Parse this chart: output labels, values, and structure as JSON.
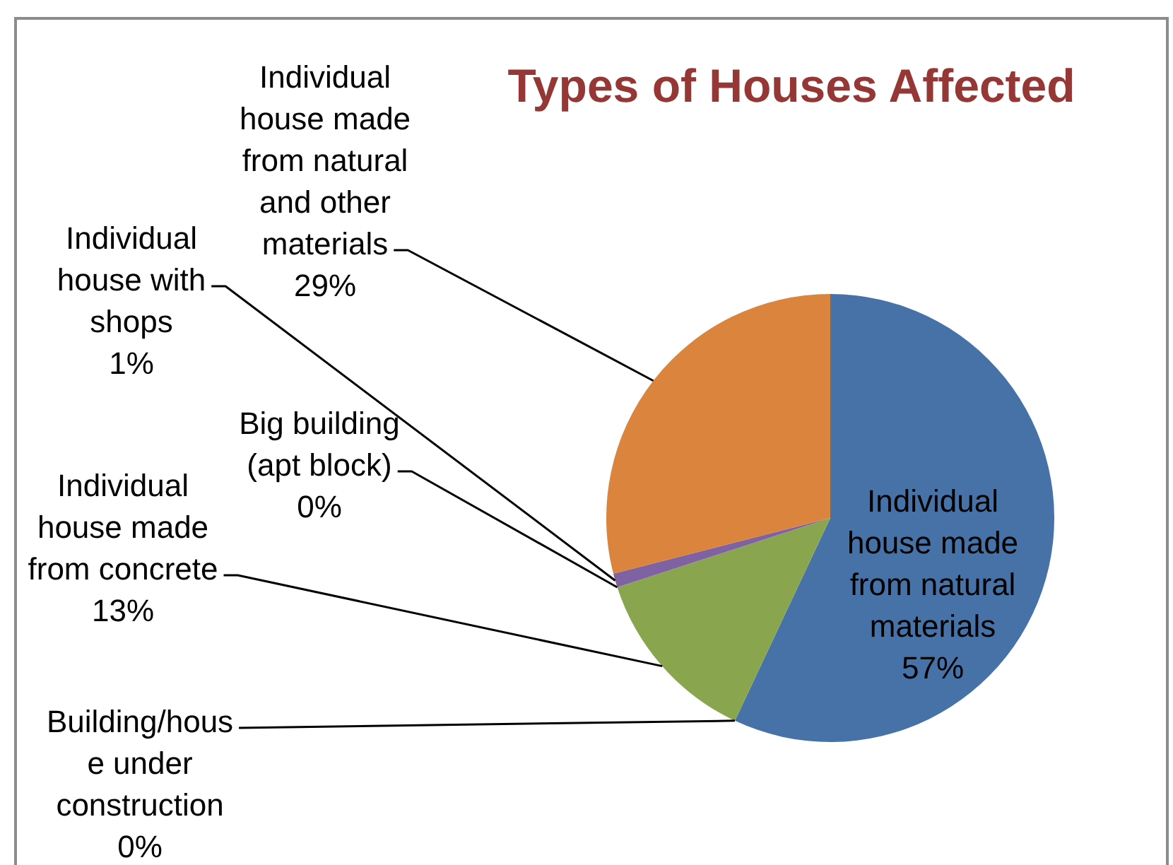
{
  "chart_data": {
    "type": "pie",
    "title": "Types of Houses Affected",
    "categories": [
      "Individual house made from natural materials",
      "Building/house under construction",
      "Individual house made from concrete",
      "Big building (apt block)",
      "Individual house with shops",
      "Individual house made from natural and other materials"
    ],
    "values": [
      57,
      0,
      13,
      0,
      1,
      29
    ],
    "colors": [
      "#4672a8",
      "#aa4643",
      "#89a54e",
      "#4bacc6",
      "#7e62a1",
      "#db843d"
    ],
    "value_labels": [
      "57%",
      "0%",
      "13%",
      "0%",
      "1%",
      "29%"
    ]
  }
}
